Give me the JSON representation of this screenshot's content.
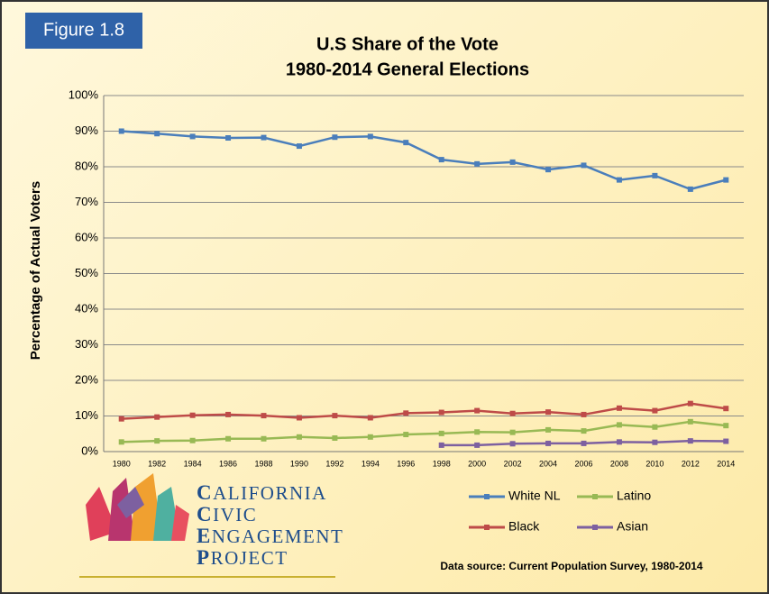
{
  "figure_label": "Figure 1.8",
  "logo": [
    "California",
    "Civic",
    "Engagement",
    "Project"
  ],
  "source": "Data source: Current Population Survey, 1980-2014",
  "chart_data": {
    "type": "line",
    "title": "U.S Share of the Vote",
    "subtitle": "1980-2014 General Elections",
    "y_label": "Percentage of Actual Voters",
    "categories": [
      "1980",
      "1982",
      "1984",
      "1986",
      "1988",
      "1990",
      "1992",
      "1994",
      "1996",
      "1998",
      "2000",
      "2002",
      "2004",
      "2006",
      "2008",
      "2010",
      "2012",
      "2014"
    ],
    "ylim": [
      0,
      100
    ],
    "yticks": [
      {
        "value": 0,
        "label": "0%"
      },
      {
        "value": 10,
        "label": "10%"
      },
      {
        "value": 20,
        "label": "20%"
      },
      {
        "value": 30,
        "label": "30%"
      },
      {
        "value": 40,
        "label": "40%"
      },
      {
        "value": 50,
        "label": "50%"
      },
      {
        "value": 60,
        "label": "60%"
      },
      {
        "value": 70,
        "label": "70%"
      },
      {
        "value": 80,
        "label": "80%"
      },
      {
        "value": 90,
        "label": "90%"
      },
      {
        "value": 100,
        "label": "100%"
      }
    ],
    "grid": true,
    "series": [
      {
        "name": "White NL",
        "color": "#4a7ebb",
        "values": [
          90,
          89.3,
          88.5,
          88.1,
          88.2,
          85.8,
          88.3,
          88.5,
          86.8,
          82,
          80.8,
          81.3,
          79.2,
          80.4,
          76.3,
          77.5,
          73.7,
          76.3
        ]
      },
      {
        "name": "Latino",
        "color": "#98b954",
        "values": [
          2.7,
          3,
          3.1,
          3.6,
          3.6,
          4.1,
          3.8,
          4.1,
          4.8,
          5.1,
          5.5,
          5.4,
          6.1,
          5.8,
          7.5,
          6.9,
          8.4,
          7.3
        ]
      },
      {
        "name": "Black",
        "color": "#be4b48",
        "values": [
          9.2,
          9.7,
          10.2,
          10.4,
          10.1,
          9.5,
          10.1,
          9.5,
          10.8,
          11,
          11.5,
          10.7,
          11.1,
          10.4,
          12.2,
          11.5,
          13.5,
          12.1
        ]
      },
      {
        "name": "Asian",
        "color": "#7d60a0",
        "values": [
          null,
          null,
          null,
          null,
          null,
          null,
          null,
          null,
          null,
          1.8,
          1.8,
          2.2,
          2.3,
          2.3,
          2.7,
          2.6,
          3.0,
          2.9
        ]
      }
    ]
  }
}
